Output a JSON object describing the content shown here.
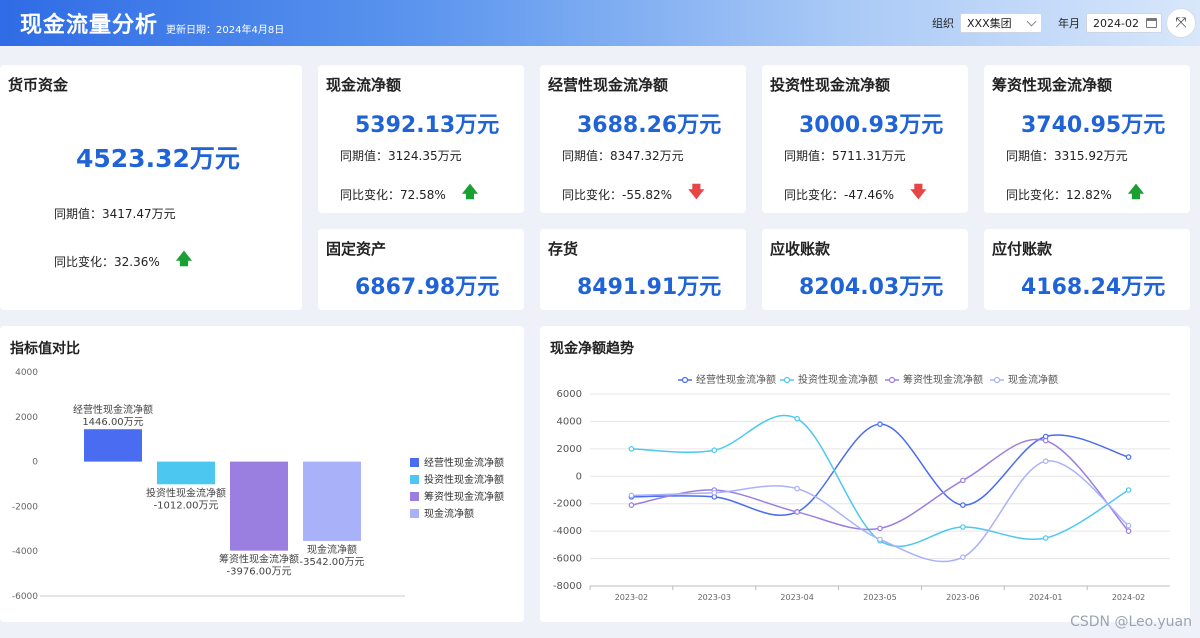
{
  "header": {
    "title": "现金流量分析",
    "update_date": "更新日期：2024年4月8日",
    "org_label": "组织",
    "org_value": "XXX集团",
    "month_label": "年月",
    "month_value": "2024-02"
  },
  "kpi_main": {
    "title": "货币资金",
    "value": "4523.32万元",
    "prev": "同期值：3417.47万元",
    "change": "同比变化：32.36%",
    "trend": "up"
  },
  "kpis": [
    {
      "title": "现金流净额",
      "value": "5392.13万元",
      "prev": "同期值：3124.35万元",
      "change": "同比变化：72.58%",
      "trend": "up"
    },
    {
      "title": "经营性现金流净额",
      "value": "3688.26万元",
      "prev": "同期值：8347.32万元",
      "change": "同比变化：-55.82%",
      "trend": "down"
    },
    {
      "title": "投资性现金流净额",
      "value": "3000.93万元",
      "prev": "同期值：5711.31万元",
      "change": "同比变化：-47.46%",
      "trend": "down"
    },
    {
      "title": "筹资性现金流净额",
      "value": "3740.95万元",
      "prev": "同期值：3315.92万元",
      "change": "同比变化：12.82%",
      "trend": "up"
    }
  ],
  "assets": [
    {
      "title": "固定资产",
      "value": "6867.98万元"
    },
    {
      "title": "存货",
      "value": "8491.91万元"
    },
    {
      "title": "应收账款",
      "value": "8204.03万元"
    },
    {
      "title": "应付账款",
      "value": "4168.24万元"
    }
  ],
  "panels": {
    "bar_title": "指标值对比",
    "line_title": "现金净额趋势"
  },
  "watermark": "CSDN @Leo.yuan",
  "chart_data": [
    {
      "type": "bar",
      "categories": [
        "经营性现金流净额",
        "投资性现金流净额",
        "筹资性现金流净额",
        "现金流净额"
      ],
      "values": [
        1446.0,
        -1012.0,
        -3976.0,
        -3542.0
      ],
      "data_labels": [
        "1446.00万元",
        "-1012.00万元",
        "-3976.00万元",
        "-3542.00万元"
      ],
      "colors": [
        "#4a6cf0",
        "#4cc8f0",
        "#9a7fe0",
        "#a9b2f8"
      ],
      "ylim": [
        -6000,
        4000
      ],
      "yticks": [
        4000,
        2000,
        0,
        -2000,
        -4000,
        -6000
      ],
      "legend": "right"
    },
    {
      "type": "line",
      "x": [
        "2023-02",
        "2023-03",
        "2023-04",
        "2023-05",
        "2023-06",
        "2024-01",
        "2024-02"
      ],
      "series": [
        {
          "name": "经营性现金流净额",
          "color": "#4a6cf0",
          "values": [
            -1500,
            -1500,
            -2600,
            3800,
            -2100,
            2900,
            1400
          ]
        },
        {
          "name": "投资性现金流净额",
          "color": "#4cc8f0",
          "values": [
            2000,
            1900,
            4200,
            -4700,
            -3700,
            -4500,
            -1000
          ]
        },
        {
          "name": "筹资性现金流净额",
          "color": "#9a7fe0",
          "values": [
            -2100,
            -1000,
            -2600,
            -3800,
            -300,
            2600,
            -4000
          ]
        },
        {
          "name": "现金流净额",
          "color": "#a9b2f8",
          "values": [
            -1400,
            -1200,
            -900,
            -4600,
            -5900,
            1100,
            -3600
          ]
        }
      ],
      "ylim": [
        -8000,
        6000
      ],
      "yticks": [
        6000,
        4000,
        2000,
        0,
        -2000,
        -4000,
        -6000,
        -8000
      ],
      "legend": "top"
    }
  ]
}
